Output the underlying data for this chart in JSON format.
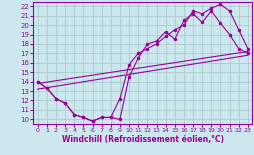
{
  "xlabel": "Windchill (Refroidissement éolien,°C)",
  "bg_color": "#cce8ee",
  "grid_color": "#aacccc",
  "line_color": "#990099",
  "xlim": [
    -0.5,
    23.5
  ],
  "ylim": [
    9.5,
    22.5
  ],
  "xticks": [
    0,
    1,
    2,
    3,
    4,
    5,
    6,
    7,
    8,
    9,
    10,
    11,
    12,
    13,
    14,
    15,
    16,
    17,
    18,
    19,
    20,
    21,
    22,
    23
  ],
  "yticks": [
    10,
    11,
    12,
    13,
    14,
    15,
    16,
    17,
    18,
    19,
    20,
    21,
    22
  ],
  "series1_x": [
    0,
    1,
    2,
    3,
    4,
    5,
    6,
    7,
    8,
    9,
    10,
    11,
    12,
    13,
    14,
    15,
    16,
    17,
    18,
    19,
    20,
    21,
    22,
    23
  ],
  "series1_y": [
    14.0,
    13.3,
    12.2,
    11.7,
    10.5,
    10.2,
    9.8,
    10.2,
    10.2,
    10.0,
    14.5,
    16.5,
    18.0,
    18.3,
    19.3,
    18.5,
    20.5,
    21.2,
    20.3,
    21.5,
    20.2,
    19.0,
    17.5,
    17.0
  ],
  "series2_x": [
    0,
    1,
    2,
    3,
    4,
    5,
    6,
    7,
    8,
    9,
    10,
    11,
    12,
    13,
    14,
    15,
    16,
    17,
    18,
    19,
    20,
    21,
    22,
    23
  ],
  "series2_y": [
    14.0,
    13.3,
    12.2,
    11.7,
    10.5,
    10.2,
    9.8,
    10.2,
    10.2,
    12.2,
    15.8,
    17.0,
    17.5,
    18.0,
    18.8,
    19.5,
    20.0,
    21.5,
    21.2,
    21.8,
    22.2,
    21.5,
    19.5,
    17.5
  ],
  "series3_x": [
    0,
    23
  ],
  "series3_y": [
    13.8,
    17.2
  ],
  "series4_x": [
    0,
    23
  ],
  "series4_y": [
    13.2,
    16.8
  ]
}
